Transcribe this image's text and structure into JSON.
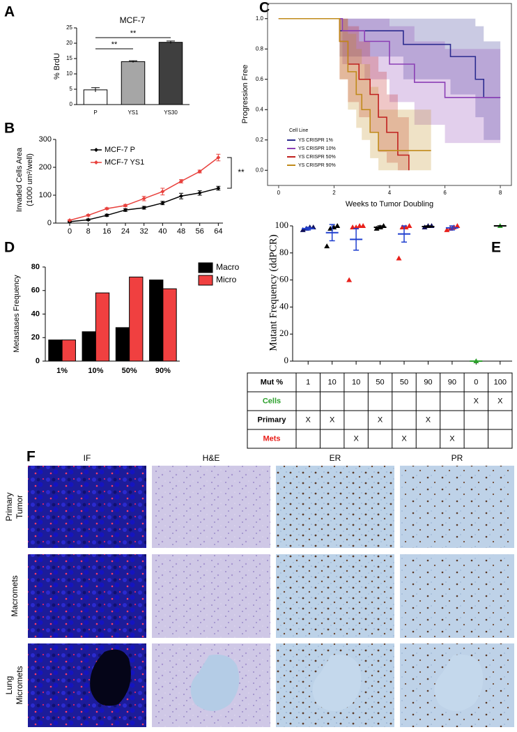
{
  "chart_data": [
    {
      "type": "bar",
      "panel": "A",
      "title": "MCF-7",
      "ylabel": "% BrdU",
      "categories": [
        "P",
        "YS1",
        "YS30"
      ],
      "values": [
        4.8,
        14,
        20.3
      ],
      "errors": [
        0.7,
        0.3,
        0.4
      ],
      "colors": [
        "#ffffff",
        "#a6a6a6",
        "#3f3f3f"
      ],
      "ylim": [
        0,
        25
      ],
      "yticks": [
        0,
        5,
        10,
        15,
        20,
        25
      ],
      "annotations": [
        "**",
        "**"
      ]
    },
    {
      "type": "line",
      "panel": "B",
      "ylabel": [
        "Invaded Cells Area",
        "(1000 um²/well)"
      ],
      "x": [
        0,
        8,
        16,
        24,
        32,
        40,
        48,
        56,
        64
      ],
      "xlim": [
        -6,
        66
      ],
      "xticks": [
        0,
        8,
        16,
        24,
        32,
        40,
        48,
        56,
        64
      ],
      "ylim": [
        0,
        300
      ],
      "yticks": [
        0,
        100,
        200,
        300
      ],
      "series": [
        {
          "name": "MCF-7 P",
          "color": "#000000",
          "values": [
            5,
            12,
            28,
            47,
            55,
            72,
            97,
            108,
            125
          ],
          "errors": [
            2,
            3,
            4,
            5,
            5,
            6,
            10,
            8,
            7
          ]
        },
        {
          "name": "MCF-7 YS1",
          "color": "#e8403c",
          "values": [
            10,
            28,
            52,
            63,
            88,
            113,
            150,
            185,
            235
          ],
          "errors": [
            2,
            3,
            3,
            4,
            8,
            12,
            6,
            5,
            12
          ]
        }
      ],
      "annotations": [
        "**"
      ]
    },
    {
      "type": "step",
      "panel": "C",
      "xlabel": "Weeks to Tumor Doubling",
      "ylabel": "Progression Free",
      "legend_title": "Cell Line",
      "xlim": [
        -0.4,
        8.4
      ],
      "xticks": [
        0,
        2,
        4,
        6,
        8
      ],
      "ylim": [
        -0.1,
        1.1
      ],
      "yticks": [
        {
          "value": 0,
          "label": "0.0"
        },
        0.2,
        0.4,
        0.6,
        0.8,
        {
          "value": 1,
          "label": "1.0"
        }
      ],
      "series": [
        {
          "name": "YS CRISPR 1%",
          "color": "#2b2b8f",
          "x": [
            0,
            2.2,
            4.5,
            6.2,
            7.1,
            7.4,
            8
          ],
          "values": [
            1,
            0.92,
            0.83,
            0.75,
            0.6,
            0.48,
            0.48
          ],
          "lower": [
            1,
            0.75,
            0.6,
            0.5,
            0.35,
            0.2,
            0.2
          ],
          "upper": [
            1,
            1,
            1,
            1,
            0.95,
            0.85,
            0.85
          ]
        },
        {
          "name": "YS CRISPR 10%",
          "color": "#8b3fb5",
          "x": [
            0,
            2.3,
            3.1,
            4,
            4.9,
            6,
            8
          ],
          "values": [
            1,
            0.92,
            0.85,
            0.7,
            0.58,
            0.48,
            0.48
          ],
          "lower": [
            1,
            0.7,
            0.6,
            0.45,
            0.3,
            0.18,
            0.18
          ],
          "upper": [
            1,
            1,
            1,
            0.95,
            0.85,
            0.8,
            0.8
          ]
        },
        {
          "name": "YS CRISPR 50%",
          "color": "#c0201e",
          "x": [
            0,
            2.2,
            2.5,
            2.9,
            3.3,
            3.6,
            3.9,
            4.3,
            4.7
          ],
          "values": [
            1,
            0.85,
            0.7,
            0.6,
            0.5,
            0.35,
            0.25,
            0.1,
            0
          ],
          "lower": [
            1,
            0.6,
            0.45,
            0.35,
            0.25,
            0.12,
            0.05,
            0,
            0
          ],
          "upper": [
            1,
            1,
            0.95,
            0.85,
            0.75,
            0.65,
            0.5,
            0.35,
            0.1
          ]
        },
        {
          "name": "YS CRISPR 90%",
          "color": "#c08a1a",
          "x": [
            0,
            2.2,
            2.5,
            2.8,
            3,
            3.3,
            3.6,
            5.5
          ],
          "values": [
            1,
            0.85,
            0.65,
            0.5,
            0.4,
            0.25,
            0.13,
            0.13
          ],
          "lower": [
            1,
            0.6,
            0.4,
            0.28,
            0.2,
            0.08,
            0,
            0
          ],
          "upper": [
            1,
            1,
            0.9,
            0.8,
            0.7,
            0.55,
            0.4,
            0.4
          ]
        }
      ]
    },
    {
      "type": "bar",
      "panel": "D",
      "ylabel": "Metastases Frequency",
      "categories": [
        "1%",
        "10%",
        "50%",
        "90%"
      ],
      "ylim": [
        0,
        80
      ],
      "yticks": [
        0,
        20,
        40,
        60,
        80
      ],
      "series": [
        {
          "name": "Macro",
          "color": "#000000",
          "values": [
            18,
            25,
            28.5,
            69
          ]
        },
        {
          "name": "Micro",
          "color": "#f04040",
          "values": [
            18,
            58,
            71.5,
            61.5
          ]
        }
      ]
    },
    {
      "type": "strip",
      "panel": "E",
      "ylabel": "Mutant Frequency (ddPCR)",
      "ylim": [
        0,
        100
      ],
      "yticks": [
        0,
        20,
        40,
        60,
        80,
        100
      ],
      "groups": [
        {
          "color": "#10105a",
          "mean_color": "#1f3fcf",
          "points": [
            97,
            98,
            99,
            99
          ],
          "mean": 98,
          "error": 1
        },
        {
          "color": "#000000",
          "mean_color": "#1f3fcf",
          "points": [
            85,
            98,
            99,
            100
          ],
          "mean": 95,
          "error": 6
        },
        {
          "color": "#e8201b",
          "mean_color": "#1f3fcf",
          "points": [
            60,
            99,
            99,
            100,
            100
          ],
          "mean": 90,
          "error": 8
        },
        {
          "color": "#000000",
          "mean_color": "#000000",
          "points": [
            98,
            99,
            100
          ],
          "mean": 99,
          "error": 1
        },
        {
          "color": "#e8201b",
          "mean_color": "#1f3fcf",
          "points": [
            76,
            99,
            99,
            100
          ],
          "mean": 94,
          "error": 6
        },
        {
          "color": "#10105a",
          "mean_color": "#000000",
          "points": [
            99,
            100,
            100
          ],
          "mean": 99.5,
          "error": 0.5
        },
        {
          "color": "#e8201b",
          "mean_color": "#1f3fcf",
          "points": [
            97,
            98,
            99,
            100
          ],
          "mean": 98.5,
          "error": 1.5
        },
        {
          "color": "#2ca02c",
          "mean_color": "#2ca02c",
          "points": [
            0
          ],
          "mean": 0,
          "error": 0
        },
        {
          "color": "#2ca02c",
          "mean_color": "#000000",
          "points": [
            100
          ],
          "mean": 100,
          "error": 0
        }
      ]
    }
  ],
  "table": {
    "header": [
      "Mut %",
      "1",
      "10",
      "10",
      "50",
      "50",
      "90",
      "90",
      "0",
      "100"
    ],
    "rows": [
      {
        "label": "Cells",
        "color": "#2ca02c",
        "cells": [
          null,
          null,
          null,
          null,
          null,
          null,
          null,
          "X",
          "X"
        ]
      },
      {
        "label": "Primary",
        "color": "#000000",
        "cells": [
          "X",
          "X",
          null,
          "X",
          null,
          "X",
          null,
          null,
          null
        ]
      },
      {
        "label": "Mets",
        "color": "#e8201b",
        "cells": [
          null,
          null,
          "X",
          null,
          "X",
          null,
          "X",
          null,
          null
        ]
      }
    ]
  },
  "figure_f": {
    "panel": "F",
    "columns": [
      "IF",
      "H&E",
      "ER",
      "PR"
    ],
    "rows": [
      [
        "Primary",
        "Tumor"
      ],
      [
        "Macromets"
      ],
      [
        "Lung",
        "Micromets"
      ]
    ]
  }
}
